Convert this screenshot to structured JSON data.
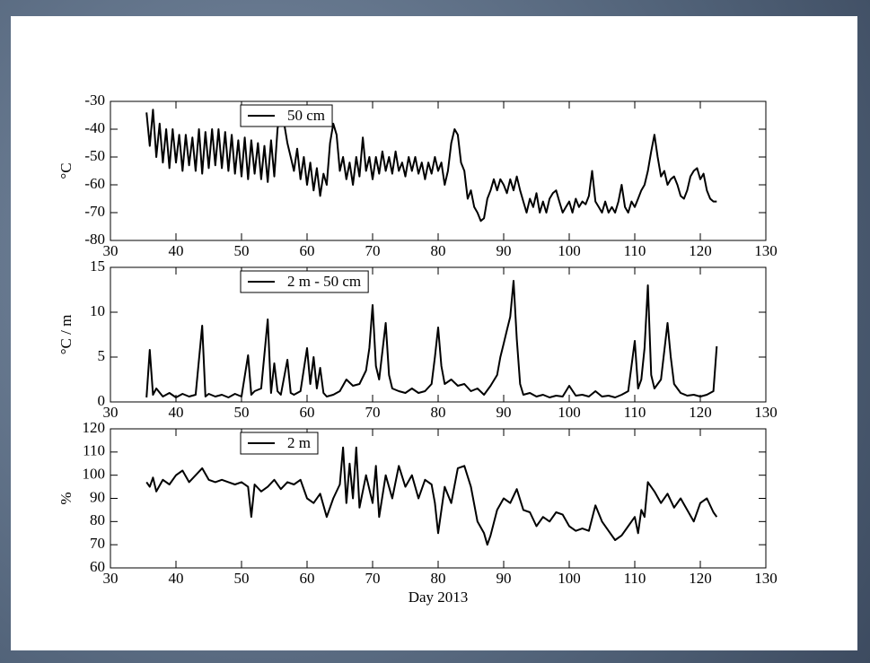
{
  "chart_data": [
    {
      "type": "line",
      "ylabel": "°C",
      "legend": "upper left",
      "xlim": [
        30,
        130
      ],
      "xticks": [
        30,
        40,
        50,
        60,
        70,
        80,
        90,
        100,
        110,
        120,
        130
      ],
      "ylim": [
        -80,
        -30
      ],
      "yticks": [
        -80,
        -70,
        -60,
        -50,
        -40,
        -30
      ],
      "x": [
        35.5,
        36,
        36.5,
        37,
        37.5,
        38,
        38.5,
        39,
        39.5,
        40,
        40.5,
        41,
        41.5,
        42,
        42.5,
        43,
        43.5,
        44,
        44.5,
        45,
        45.5,
        46,
        46.5,
        47,
        47.5,
        48,
        48.5,
        49,
        49.5,
        50,
        50.5,
        51,
        51.5,
        52,
        52.5,
        53,
        53.5,
        54,
        54.5,
        55,
        55.5,
        56,
        56.5,
        57,
        57.5,
        58,
        58.5,
        59,
        59.5,
        60,
        60.5,
        61,
        61.5,
        62,
        62.5,
        63,
        63.5,
        64,
        64.5,
        65,
        65.5,
        66,
        66.5,
        67,
        67.5,
        68,
        68.5,
        69,
        69.5,
        70,
        70.5,
        71,
        71.5,
        72,
        72.5,
        73,
        73.5,
        74,
        74.5,
        75,
        75.5,
        76,
        76.5,
        77,
        77.5,
        78,
        78.5,
        79,
        79.5,
        80,
        80.5,
        81,
        81.5,
        82,
        82.5,
        83,
        83.5,
        84,
        84.5,
        85,
        85.5,
        86,
        86.5,
        87,
        87.5,
        88,
        88.5,
        89,
        89.5,
        90,
        90.5,
        91,
        91.5,
        92,
        92.5,
        93,
        93.5,
        94,
        94.5,
        95,
        95.5,
        96,
        96.5,
        97,
        97.5,
        98,
        98.5,
        99,
        99.5,
        100,
        100.5,
        101,
        101.5,
        102,
        102.5,
        103,
        103.5,
        104,
        104.5,
        105,
        105.5,
        106,
        106.5,
        107,
        107.5,
        108,
        108.5,
        109,
        109.5,
        110,
        110.5,
        111,
        111.5,
        112,
        112.5,
        113,
        113.5,
        114,
        114.5,
        115,
        115.5,
        116,
        116.5,
        117,
        117.5,
        118,
        118.5,
        119,
        119.5,
        120,
        120.5,
        121,
        121.5,
        122,
        122.5
      ],
      "series": [
        {
          "name": "50 cm",
          "color": "#000000",
          "values": [
            -34,
            -46,
            -33,
            -50,
            -38,
            -52,
            -40,
            -54,
            -40,
            -52,
            -42,
            -55,
            -42,
            -53,
            -43,
            -55,
            -40,
            -56,
            -41,
            -54,
            -40,
            -53,
            -40,
            -54,
            -41,
            -55,
            -42,
            -56,
            -44,
            -57,
            -43,
            -58,
            -44,
            -56,
            -45,
            -58,
            -46,
            -59,
            -44,
            -57,
            -40,
            -32,
            -38,
            -45,
            -50,
            -55,
            -47,
            -58,
            -50,
            -60,
            -52,
            -62,
            -54,
            -64,
            -56,
            -60,
            -45,
            -38,
            -42,
            -55,
            -50,
            -58,
            -52,
            -60,
            -50,
            -57,
            -43,
            -55,
            -50,
            -58,
            -50,
            -56,
            -48,
            -55,
            -50,
            -56,
            -48,
            -55,
            -52,
            -57,
            -50,
            -55,
            -50,
            -56,
            -52,
            -58,
            -52,
            -56,
            -50,
            -55,
            -52,
            -60,
            -55,
            -45,
            -40,
            -42,
            -52,
            -55,
            -65,
            -62,
            -68,
            -70,
            -73,
            -72,
            -65,
            -62,
            -58,
            -62,
            -58,
            -60,
            -63,
            -58,
            -62,
            -57,
            -62,
            -66,
            -70,
            -65,
            -68,
            -63,
            -70,
            -66,
            -70,
            -65,
            -63,
            -62,
            -66,
            -70,
            -68,
            -66,
            -70,
            -65,
            -68,
            -66,
            -67,
            -64,
            -55,
            -66,
            -68,
            -70,
            -66,
            -70,
            -68,
            -70,
            -66,
            -60,
            -68,
            -70,
            -66,
            -68,
            -65,
            -62,
            -60,
            -55,
            -48,
            -42,
            -50,
            -57,
            -55,
            -60,
            -58,
            -57,
            -60,
            -64,
            -65,
            -62,
            -57,
            -55,
            -54,
            -58,
            -56,
            -62,
            -65,
            -66,
            -66
          ]
        }
      ]
    },
    {
      "type": "line",
      "ylabel": "°C / m",
      "legend": "upper left",
      "xlim": [
        30,
        130
      ],
      "xticks": [
        30,
        40,
        50,
        60,
        70,
        80,
        90,
        100,
        110,
        120,
        130
      ],
      "ylim": [
        0,
        15
      ],
      "yticks": [
        0,
        5,
        10,
        15
      ],
      "x": [
        35.5,
        36,
        36.5,
        37,
        38,
        39,
        40,
        41,
        42,
        43,
        44,
        44.5,
        45,
        46,
        47,
        48,
        49,
        50,
        51,
        51.5,
        52,
        53,
        54,
        54.5,
        55,
        55.5,
        56,
        57,
        57.5,
        58,
        59,
        60,
        60.5,
        61,
        61.5,
        62,
        62.5,
        63,
        64,
        65,
        66,
        67,
        68,
        69,
        69.5,
        70,
        70.5,
        71,
        72,
        72.5,
        73,
        74,
        75,
        76,
        77,
        78,
        79,
        79.5,
        80,
        80.5,
        81,
        82,
        83,
        84,
        85,
        86,
        87,
        88,
        89,
        89.5,
        90,
        90.5,
        91,
        91.5,
        92,
        92.5,
        93,
        94,
        95,
        96,
        97,
        98,
        99,
        100,
        101,
        102,
        103,
        104,
        105,
        106,
        107,
        108,
        109,
        110,
        110.5,
        111,
        111.5,
        112,
        112.5,
        113,
        114,
        115,
        115.5,
        116,
        117,
        118,
        119,
        120,
        121,
        122,
        122.5
      ],
      "series": [
        {
          "name": "2 m - 50 cm",
          "color": "#000000",
          "values": [
            0.5,
            5.8,
            0.8,
            1.5,
            0.6,
            1,
            0.5,
            0.9,
            0.6,
            0.8,
            8.5,
            0.6,
            0.9,
            0.6,
            0.8,
            0.5,
            0.9,
            0.6,
            5.2,
            0.8,
            1.2,
            1.5,
            9.2,
            1,
            4.3,
            1.2,
            0.8,
            4.7,
            1,
            0.8,
            1.2,
            6,
            2,
            5,
            1.5,
            3.8,
            1,
            0.6,
            0.8,
            1.2,
            2.5,
            1.8,
            2,
            3.5,
            6,
            10.8,
            4,
            2.5,
            8.8,
            3,
            1.5,
            1.2,
            1,
            1.5,
            1,
            1.2,
            2,
            5,
            8.3,
            4,
            2,
            2.5,
            1.8,
            2,
            1.2,
            1.5,
            0.8,
            1.8,
            3,
            5,
            6.5,
            8,
            9.5,
            13.5,
            7,
            2,
            0.8,
            1,
            0.6,
            0.8,
            0.5,
            0.7,
            0.6,
            1.8,
            0.7,
            0.8,
            0.6,
            1.2,
            0.6,
            0.7,
            0.5,
            0.8,
            1.2,
            6.8,
            1.5,
            2.5,
            6,
            13,
            3,
            1.5,
            2.5,
            8.8,
            5,
            2,
            1,
            0.7,
            0.8,
            0.6,
            0.8,
            1.2,
            6.2
          ]
        }
      ]
    },
    {
      "type": "line",
      "ylabel": "%",
      "xlabel": "Day 2013",
      "legend": "upper left",
      "xlim": [
        30,
        130
      ],
      "xticks": [
        30,
        40,
        50,
        60,
        70,
        80,
        90,
        100,
        110,
        120,
        130
      ],
      "ylim": [
        60,
        120
      ],
      "yticks": [
        60,
        70,
        80,
        90,
        100,
        110,
        120
      ],
      "x": [
        35.5,
        36,
        36.5,
        37,
        38,
        39,
        40,
        41,
        42,
        43,
        44,
        45,
        46,
        47,
        48,
        49,
        50,
        51,
        51.5,
        52,
        53,
        54,
        55,
        56,
        57,
        58,
        59,
        60,
        61,
        62,
        63,
        64,
        65,
        65.5,
        66,
        66.5,
        67,
        67.5,
        68,
        69,
        70,
        70.5,
        71,
        72,
        73,
        74,
        75,
        76,
        77,
        78,
        79,
        79.5,
        80,
        81,
        82,
        83,
        84,
        85,
        86,
        87,
        87.5,
        88,
        89,
        90,
        91,
        92,
        93,
        94,
        95,
        96,
        97,
        98,
        99,
        100,
        101,
        102,
        103,
        104,
        105,
        106,
        107,
        108,
        109,
        110,
        110.5,
        111,
        111.5,
        112,
        113,
        114,
        115,
        116,
        117,
        118,
        119,
        120,
        121,
        122,
        122.5
      ],
      "series": [
        {
          "name": "2 m",
          "color": "#000000",
          "values": [
            97,
            95,
            99,
            93,
            98,
            96,
            100,
            102,
            97,
            100,
            103,
            98,
            97,
            98,
            97,
            96,
            97,
            95,
            82,
            96,
            93,
            95,
            98,
            94,
            97,
            96,
            98,
            90,
            88,
            92,
            82,
            90,
            96,
            112,
            88,
            105,
            90,
            112,
            86,
            100,
            88,
            104,
            82,
            100,
            90,
            104,
            95,
            100,
            90,
            98,
            96,
            88,
            75,
            95,
            88,
            103,
            104,
            95,
            80,
            75,
            70,
            74,
            85,
            90,
            88,
            94,
            85,
            84,
            78,
            82,
            80,
            84,
            83,
            78,
            76,
            77,
            76,
            87,
            80,
            76,
            72,
            74,
            78,
            82,
            75,
            85,
            82,
            97,
            93,
            88,
            92,
            86,
            90,
            85,
            80,
            88,
            90,
            84,
            82
          ]
        }
      ]
    }
  ]
}
